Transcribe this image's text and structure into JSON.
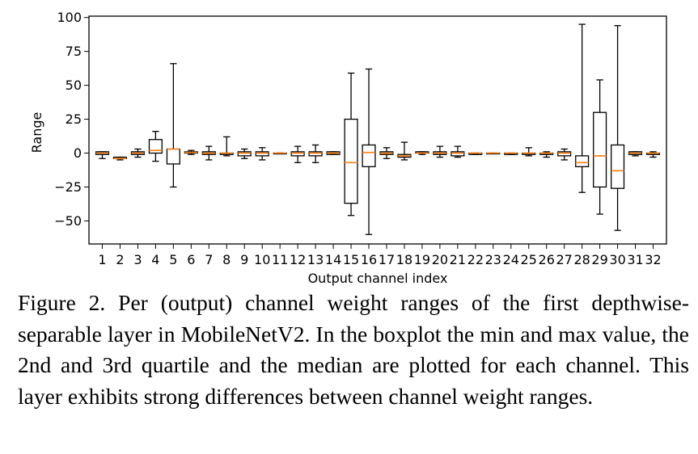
{
  "caption": "Figure 2. Per (output) channel weight ranges of the first depthwise-separable layer in MobileNetV2. In the boxplot the min and max value, the 2nd and 3rd quartile and the median are plotted for each channel. This layer exhibits strong differences between channel weight ranges.",
  "chart_data": {
    "type": "boxplot",
    "title": "",
    "xlabel": "Output channel index",
    "ylabel": "Range",
    "ylim": [
      -67,
      101
    ],
    "yticks": [
      100,
      75,
      50,
      25,
      0,
      -25,
      -50
    ],
    "ytick_labels": [
      "100",
      "75",
      "50",
      "25",
      "0",
      "−25",
      "−50"
    ],
    "categories": [
      "1",
      "2",
      "3",
      "4",
      "5",
      "6",
      "7",
      "8",
      "9",
      "10",
      "11",
      "12",
      "13",
      "14",
      "15",
      "16",
      "17",
      "18",
      "19",
      "20",
      "21",
      "22",
      "23",
      "24",
      "25",
      "26",
      "27",
      "28",
      "29",
      "30",
      "31",
      "32"
    ],
    "box_color": "#000000",
    "median_color": "#ff7f0e",
    "grid": false,
    "boxes": [
      {
        "min": -4,
        "q1": -1,
        "median": 0,
        "q3": 1,
        "max": 1
      },
      {
        "min": -5,
        "q1": -4,
        "median": -4,
        "q3": -3,
        "max": -3
      },
      {
        "min": -3,
        "q1": -1,
        "median": 0,
        "q3": 1,
        "max": 3
      },
      {
        "min": -6,
        "q1": 0,
        "median": 2,
        "q3": 10,
        "max": 16
      },
      {
        "min": -25,
        "q1": -8,
        "median": 3,
        "q3": 3,
        "max": 66
      },
      {
        "min": -1,
        "q1": 0,
        "median": 0.5,
        "q3": 1,
        "max": 2
      },
      {
        "min": -5,
        "q1": -1,
        "median": 0,
        "q3": 1,
        "max": 5
      },
      {
        "min": -2,
        "q1": -1,
        "median": 0,
        "q3": 0,
        "max": 12
      },
      {
        "min": -4,
        "q1": -2,
        "median": 0,
        "q3": 1,
        "max": 3
      },
      {
        "min": -5,
        "q1": -2,
        "median": 0,
        "q3": 1,
        "max": 4
      },
      {
        "min": 0,
        "q1": 0,
        "median": 0,
        "q3": 0,
        "max": 0
      },
      {
        "min": -7,
        "q1": -2,
        "median": 0,
        "q3": 1,
        "max": 5
      },
      {
        "min": -7,
        "q1": -2,
        "median": 0,
        "q3": 1,
        "max": 6
      },
      {
        "min": -1,
        "q1": -1,
        "median": 0,
        "q3": 1,
        "max": 1
      },
      {
        "min": -46,
        "q1": -37,
        "median": -7,
        "q3": 25,
        "max": 59
      },
      {
        "min": -60,
        "q1": -10,
        "median": 0.5,
        "q3": 6,
        "max": 62
      },
      {
        "min": -4,
        "q1": -1,
        "median": 0,
        "q3": 1,
        "max": 4
      },
      {
        "min": -5,
        "q1": -3,
        "median": -2,
        "q3": -1,
        "max": 8
      },
      {
        "min": -1,
        "q1": 0,
        "median": 0,
        "q3": 1,
        "max": 1
      },
      {
        "min": -3,
        "q1": -1,
        "median": 0,
        "q3": 1,
        "max": 5
      },
      {
        "min": -3,
        "q1": -2,
        "median": 0,
        "q3": 1,
        "max": 5
      },
      {
        "min": -1,
        "q1": -1,
        "median": 0,
        "q3": 0,
        "max": 0
      },
      {
        "min": 0,
        "q1": 0,
        "median": 0,
        "q3": 0,
        "max": 0
      },
      {
        "min": -1,
        "q1": -1,
        "median": 0,
        "q3": 0,
        "max": 0
      },
      {
        "min": -2,
        "q1": -1,
        "median": 0,
        "q3": 0,
        "max": 4
      },
      {
        "min": -3,
        "q1": -1,
        "median": 0,
        "q3": 0,
        "max": 1
      },
      {
        "min": -5,
        "q1": -2,
        "median": 0,
        "q3": 1,
        "max": 3
      },
      {
        "min": -29,
        "q1": -10,
        "median": -7,
        "q3": -2,
        "max": 95
      },
      {
        "min": -45,
        "q1": -25,
        "median": -2,
        "q3": 30,
        "max": 54
      },
      {
        "min": -57,
        "q1": -26,
        "median": -13,
        "q3": 6,
        "max": 94
      },
      {
        "min": -2,
        "q1": -1,
        "median": 0,
        "q3": 1,
        "max": 1
      },
      {
        "min": -3,
        "q1": -1,
        "median": 0,
        "q3": 0,
        "max": 1
      }
    ]
  }
}
